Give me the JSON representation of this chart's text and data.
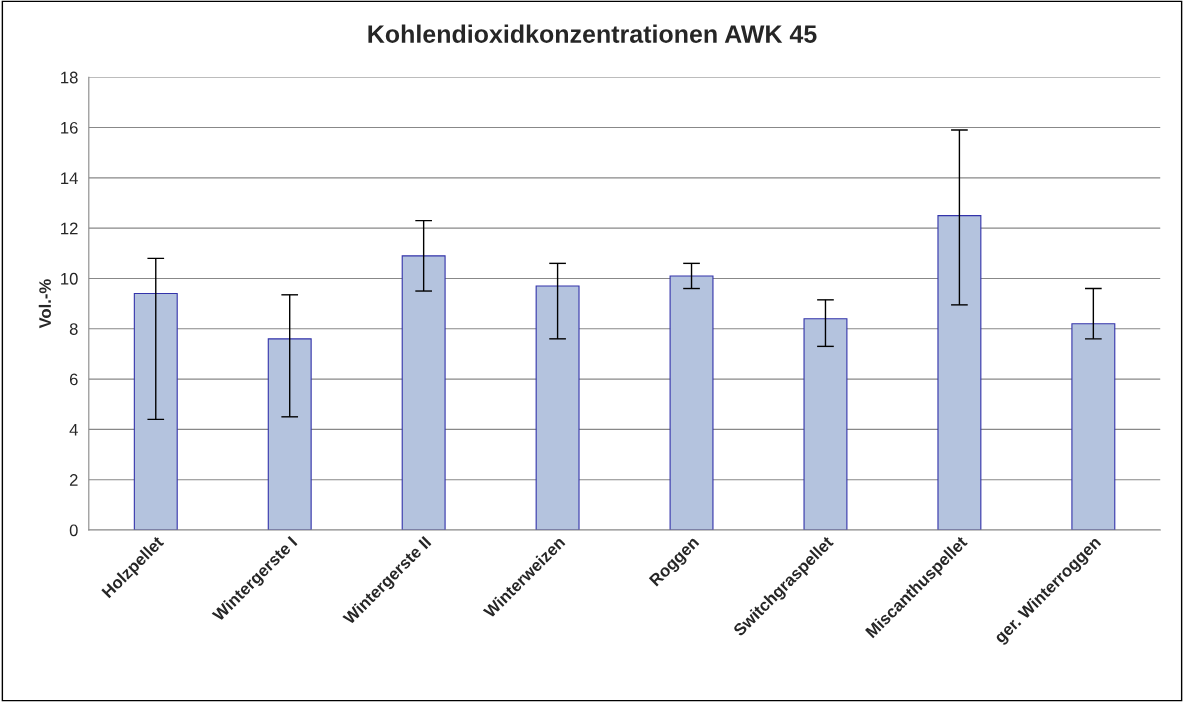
{
  "chart_data": {
    "type": "bar",
    "title": "Kohlendioxidkonzentrationen AWK 45",
    "ylabel": "Vol.-%",
    "categories": [
      "Holzpellet",
      "Wintergerste I",
      "Wintergerste II",
      "Winterweizen",
      "Roggen",
      "Switchgraspellet",
      "Miscanthuspellet",
      "ger. Winterroggen"
    ],
    "values": [
      9.4,
      7.6,
      10.9,
      9.7,
      10.1,
      8.4,
      12.5,
      8.2
    ],
    "errors": [
      [
        4.4,
        10.8
      ],
      [
        4.5,
        9.35
      ],
      [
        9.5,
        12.3
      ],
      [
        7.6,
        10.6
      ],
      [
        9.6,
        10.6
      ],
      [
        7.3,
        9.15
      ],
      [
        8.95,
        15.9
      ],
      [
        7.6,
        9.6
      ]
    ],
    "color": "#b4c3de",
    "ylim": [
      0,
      18
    ],
    "yticks": [
      0,
      2,
      4,
      6,
      8,
      10,
      12,
      14,
      16,
      18
    ],
    "grid": "y"
  }
}
